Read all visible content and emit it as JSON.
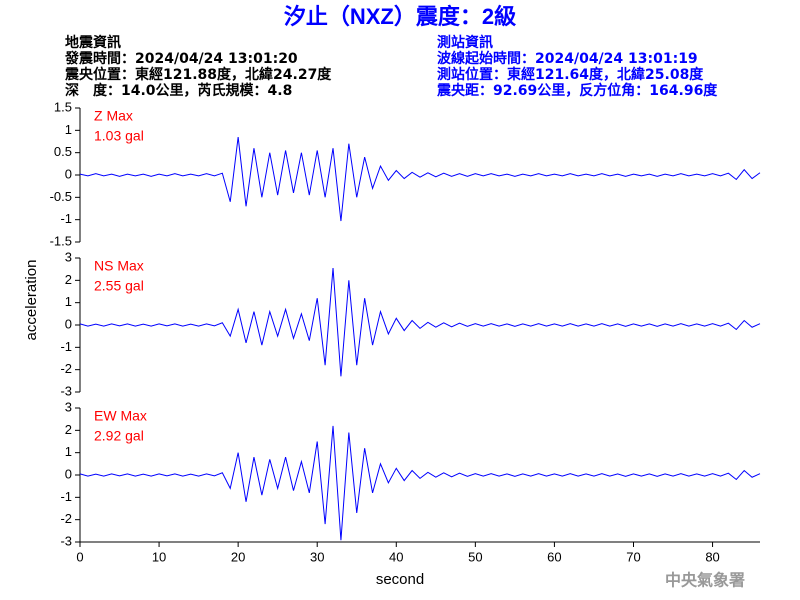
{
  "header": {
    "title": "汐止（NXZ）震度：2級",
    "left": [
      "地震資訊",
      "發震時間：2024/04/24 13:01:20",
      "震央位置：東經121.88度，北緯24.27度",
      "深　度：14.0公里，芮氏規模：4.8"
    ],
    "right": [
      "測站資訊",
      "波線起始時間：2024/04/24 13:01:19",
      "測站位置：東經121.64度，北緯25.08度",
      "震央距：92.69公里，反方位角：164.96度"
    ]
  },
  "footer": "中央氣象署",
  "chart_data": [
    {
      "type": "line",
      "annotation": [
        "Z Max",
        "1.03 gal"
      ],
      "color": "#0000ff",
      "xlim": [
        0,
        86
      ],
      "ylim": [
        -1.5,
        1.5
      ],
      "yticks": [
        1.5,
        1,
        0.5,
        0,
        -0.5,
        -1,
        -1.5
      ],
      "x": [
        0,
        1,
        2,
        3,
        4,
        5,
        6,
        7,
        8,
        9,
        10,
        11,
        12,
        13,
        14,
        15,
        16,
        17,
        18,
        19,
        20,
        21,
        22,
        23,
        24,
        25,
        26,
        27,
        28,
        29,
        30,
        31,
        32,
        33,
        34,
        35,
        36,
        37,
        38,
        39,
        40,
        41,
        42,
        43,
        44,
        45,
        46,
        47,
        48,
        49,
        50,
        51,
        52,
        53,
        54,
        55,
        56,
        57,
        58,
        59,
        60,
        61,
        62,
        63,
        64,
        65,
        66,
        67,
        68,
        69,
        70,
        71,
        72,
        73,
        74,
        75,
        76,
        77,
        78,
        79,
        80,
        81,
        82,
        83,
        84,
        85,
        86
      ],
      "values": [
        0.02,
        -0.02,
        0.03,
        -0.02,
        0.02,
        -0.03,
        0.02,
        -0.02,
        0.02,
        -0.03,
        0.02,
        -0.02,
        0.03,
        -0.02,
        0.02,
        -0.02,
        0.03,
        -0.02,
        0.04,
        -0.6,
        0.85,
        -0.7,
        0.6,
        -0.5,
        0.5,
        -0.45,
        0.55,
        -0.4,
        0.5,
        -0.45,
        0.55,
        -0.5,
        0.6,
        -1.03,
        0.7,
        -0.5,
        0.4,
        -0.3,
        0.2,
        -0.12,
        0.1,
        -0.08,
        0.06,
        -0.05,
        0.05,
        -0.04,
        0.04,
        -0.03,
        0.03,
        -0.03,
        0.03,
        -0.02,
        0.03,
        -0.02,
        0.02,
        -0.03,
        0.02,
        -0.02,
        0.03,
        -0.02,
        0.02,
        -0.02,
        0.03,
        -0.02,
        0.02,
        -0.02,
        0.03,
        -0.02,
        0.02,
        -0.03,
        0.02,
        -0.02,
        0.02,
        -0.03,
        0.02,
        -0.02,
        0.03,
        -0.02,
        0.02,
        -0.02,
        0.03,
        -0.02,
        0.04,
        -0.1,
        0.12,
        -0.08,
        0.05
      ]
    },
    {
      "type": "line",
      "annotation": [
        "NS Max",
        "2.55 gal"
      ],
      "color": "#0000ff",
      "ylabel": "acceleration",
      "xlim": [
        0,
        86
      ],
      "ylim": [
        -3,
        3
      ],
      "yticks": [
        3,
        2,
        1,
        0,
        -1,
        -2,
        -3
      ],
      "x": [
        0,
        1,
        2,
        3,
        4,
        5,
        6,
        7,
        8,
        9,
        10,
        11,
        12,
        13,
        14,
        15,
        16,
        17,
        18,
        19,
        20,
        21,
        22,
        23,
        24,
        25,
        26,
        27,
        28,
        29,
        30,
        31,
        32,
        33,
        34,
        35,
        36,
        37,
        38,
        39,
        40,
        41,
        42,
        43,
        44,
        45,
        46,
        47,
        48,
        49,
        50,
        51,
        52,
        53,
        54,
        55,
        56,
        57,
        58,
        59,
        60,
        61,
        62,
        63,
        64,
        65,
        66,
        67,
        68,
        69,
        70,
        71,
        72,
        73,
        74,
        75,
        76,
        77,
        78,
        79,
        80,
        81,
        82,
        83,
        84,
        85,
        86
      ],
      "values": [
        0.05,
        -0.05,
        0.04,
        -0.05,
        0.05,
        -0.04,
        0.05,
        -0.05,
        0.04,
        -0.05,
        0.05,
        -0.04,
        0.05,
        -0.05,
        0.04,
        -0.05,
        0.05,
        -0.04,
        0.1,
        -0.5,
        0.7,
        -0.8,
        0.6,
        -0.9,
        0.6,
        -0.5,
        0.7,
        -0.6,
        0.5,
        -0.7,
        1.2,
        -1.8,
        2.55,
        -2.3,
        2.0,
        -1.8,
        1.2,
        -0.9,
        0.6,
        -0.4,
        0.3,
        -0.25,
        0.2,
        -0.15,
        0.12,
        -0.1,
        0.1,
        -0.08,
        0.08,
        -0.06,
        0.06,
        -0.05,
        0.06,
        -0.05,
        0.05,
        -0.06,
        0.05,
        -0.05,
        0.06,
        -0.05,
        0.05,
        -0.05,
        0.06,
        -0.05,
        0.05,
        -0.05,
        0.06,
        -0.05,
        0.05,
        -0.06,
        0.05,
        -0.05,
        0.05,
        -0.06,
        0.05,
        -0.05,
        0.06,
        -0.05,
        0.05,
        -0.05,
        0.06,
        -0.05,
        0.08,
        -0.2,
        0.2,
        -0.1,
        0.06
      ]
    },
    {
      "type": "line",
      "annotation": [
        "EW Max",
        "2.92 gal"
      ],
      "color": "#0000ff",
      "xlabel": "second",
      "xlim": [
        0,
        86
      ],
      "xticks": [
        0,
        10,
        20,
        30,
        40,
        50,
        60,
        70,
        80
      ],
      "ylim": [
        -3,
        3
      ],
      "yticks": [
        3,
        2,
        1,
        0,
        -1,
        -2,
        -3
      ],
      "x": [
        0,
        1,
        2,
        3,
        4,
        5,
        6,
        7,
        8,
        9,
        10,
        11,
        12,
        13,
        14,
        15,
        16,
        17,
        18,
        19,
        20,
        21,
        22,
        23,
        24,
        25,
        26,
        27,
        28,
        29,
        30,
        31,
        32,
        33,
        34,
        35,
        36,
        37,
        38,
        39,
        40,
        41,
        42,
        43,
        44,
        45,
        46,
        47,
        48,
        49,
        50,
        51,
        52,
        53,
        54,
        55,
        56,
        57,
        58,
        59,
        60,
        61,
        62,
        63,
        64,
        65,
        66,
        67,
        68,
        69,
        70,
        71,
        72,
        73,
        74,
        75,
        76,
        77,
        78,
        79,
        80,
        81,
        82,
        83,
        84,
        85,
        86
      ],
      "values": [
        0.05,
        -0.05,
        0.04,
        -0.05,
        0.05,
        -0.04,
        0.05,
        -0.05,
        0.04,
        -0.05,
        0.05,
        -0.04,
        0.05,
        -0.05,
        0.04,
        -0.05,
        0.05,
        -0.04,
        0.1,
        -0.6,
        1.0,
        -1.2,
        0.8,
        -0.9,
        0.7,
        -0.6,
        0.8,
        -0.7,
        0.6,
        -0.8,
        1.5,
        -2.2,
        2.2,
        -2.92,
        1.9,
        -1.7,
        1.2,
        -0.8,
        0.5,
        -0.35,
        0.3,
        -0.25,
        0.2,
        -0.15,
        0.12,
        -0.1,
        0.1,
        -0.08,
        0.08,
        -0.06,
        0.06,
        -0.05,
        0.06,
        -0.05,
        0.05,
        -0.06,
        0.05,
        -0.05,
        0.06,
        -0.05,
        0.05,
        -0.05,
        0.06,
        -0.05,
        0.05,
        -0.05,
        0.06,
        -0.05,
        0.05,
        -0.06,
        0.05,
        -0.05,
        0.05,
        -0.06,
        0.05,
        -0.05,
        0.06,
        -0.05,
        0.05,
        -0.05,
        0.06,
        -0.05,
        0.08,
        -0.2,
        0.2,
        -0.1,
        0.06
      ]
    }
  ]
}
